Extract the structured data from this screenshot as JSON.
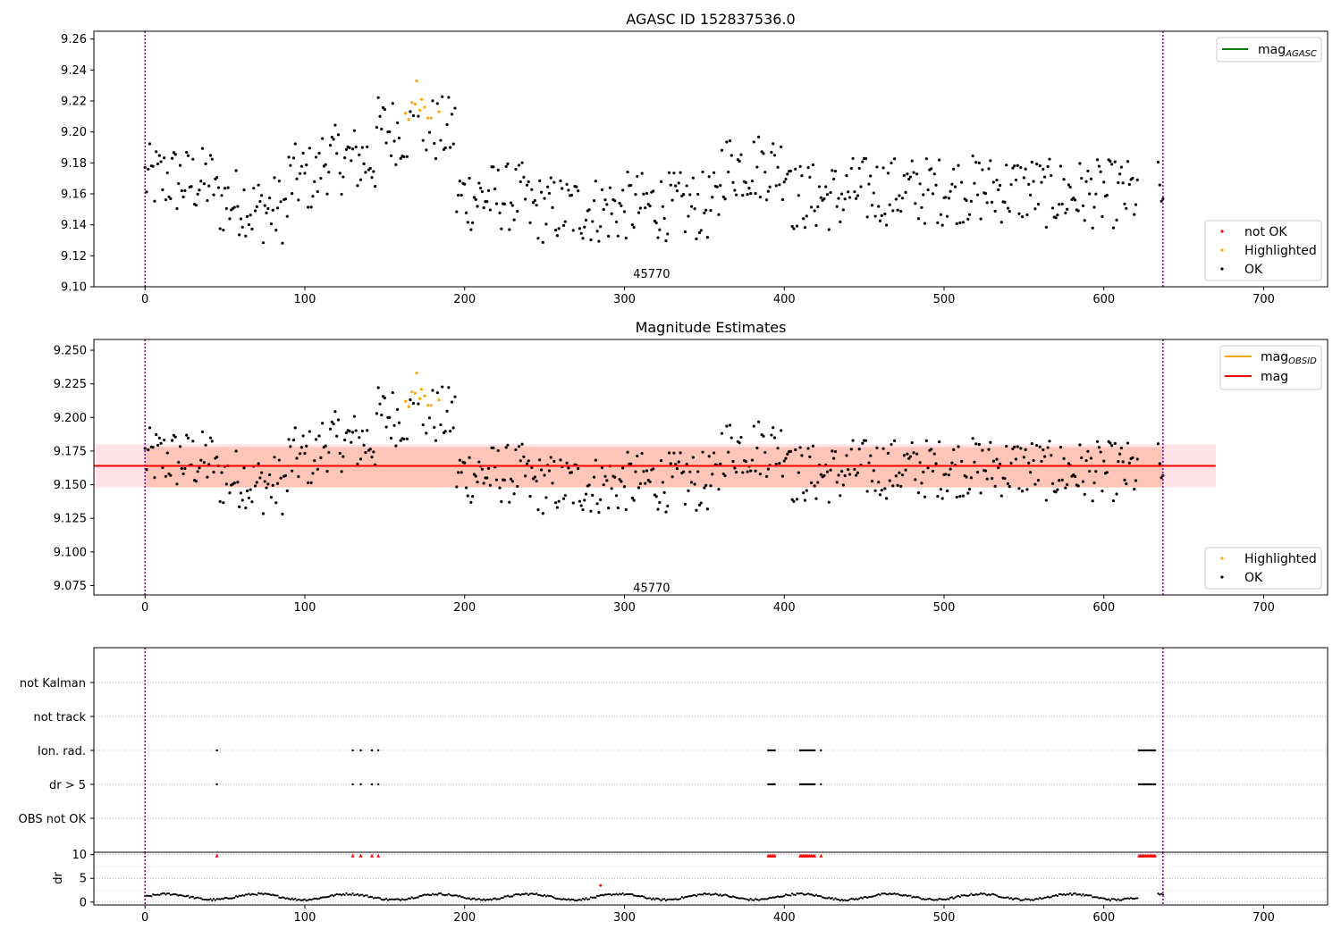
{
  "chart_data": [
    {
      "type": "scatter",
      "title": "AGASC ID 152837536.0",
      "xlim": [
        -32,
        740
      ],
      "ylim": [
        9.1,
        9.265
      ],
      "xticks": [
        0,
        100,
        200,
        300,
        400,
        500,
        600,
        700
      ],
      "yticks": [
        9.1,
        9.12,
        9.14,
        9.16,
        9.18,
        9.2,
        9.22,
        9.24,
        9.26
      ],
      "ytick_decimals": 2,
      "annotation": {
        "text": "45770",
        "x": 317,
        "y": 9.108
      },
      "obs_boundaries": [
        0,
        637
      ],
      "line_legend": [
        {
          "label": "mag",
          "subscript": "AGASC",
          "color": "#008000"
        }
      ],
      "series": [
        {
          "name": "not OK",
          "color": "#ff0000",
          "points": []
        },
        {
          "name": "Highlighted",
          "color": "#ffa500",
          "points": [
            [
              163,
              9.212
            ],
            [
              165,
              9.208
            ],
            [
              167,
              9.219
            ],
            [
              169,
              9.218
            ],
            [
              170,
              9.233
            ],
            [
              172,
              9.214
            ],
            [
              173,
              9.221
            ],
            [
              175,
              9.216
            ],
            [
              177,
              9.209
            ],
            [
              179,
              9.209
            ],
            [
              184,
              9.213
            ]
          ]
        },
        {
          "name": "OK",
          "color": "#000000",
          "points": []
        }
      ],
      "ok_series_model": {
        "x_start": 0,
        "x_end": 637,
        "step": 1,
        "description": "OK magnitude estimates per observation index",
        "center": 9.165
      }
    },
    {
      "type": "scatter",
      "title": "Magnitude Estimates",
      "xlim": [
        -32,
        740
      ],
      "ylim": [
        9.068,
        9.258
      ],
      "xticks": [
        0,
        100,
        200,
        300,
        400,
        500,
        600,
        700
      ],
      "yticks": [
        9.075,
        9.1,
        9.125,
        9.15,
        9.175,
        9.2,
        9.225,
        9.25
      ],
      "ytick_decimals": 3,
      "annotation": {
        "text": "45770",
        "x": 317,
        "y": 9.073
      },
      "obs_boundaries": [
        0,
        637
      ],
      "mag_obsid": 9.164,
      "mag": 9.164,
      "band_outer": [
        9.148,
        9.18
      ],
      "band_inner": [
        9.148,
        9.178
      ],
      "line_legend": [
        {
          "label": "mag",
          "subscript": "OBSID",
          "color": "#ffa500"
        },
        {
          "label": "mag",
          "subscript": "",
          "color": "#ff0000"
        }
      ],
      "series": [
        {
          "name": "Highlighted",
          "color": "#ffa500"
        },
        {
          "name": "OK",
          "color": "#000000"
        }
      ]
    },
    {
      "type": "scatter",
      "title": "",
      "xlim": [
        -32,
        740
      ],
      "categories": [
        "not Kalman",
        "not track",
        "Ion. rad.",
        "dr > 5",
        "OBS not OK"
      ],
      "obs_boundaries": [
        0,
        637
      ],
      "flag_x": [
        45,
        130,
        135,
        142,
        146,
        390,
        391,
        392,
        393,
        394,
        410,
        411,
        412,
        413,
        414,
        415,
        416,
        417,
        418,
        419,
        423,
        622,
        623,
        624,
        625,
        626,
        627,
        628,
        629,
        630,
        631,
        632
      ],
      "flag_rows": [
        "Ion. rad.",
        "dr > 5"
      ]
    },
    {
      "type": "scatter",
      "title": "",
      "ylabel": "dr",
      "xlim": [
        -32,
        740
      ],
      "ylim": [
        -0.6,
        10.5
      ],
      "xticks": [
        0,
        100,
        200,
        300,
        400,
        500,
        600,
        700
      ],
      "yticks": [
        0,
        5,
        10
      ],
      "obs_boundaries": [
        0,
        637
      ],
      "clipped_x": [
        45,
        130,
        135,
        142,
        146,
        390,
        391,
        392,
        393,
        394,
        410,
        411,
        412,
        413,
        414,
        415,
        416,
        417,
        418,
        419,
        423,
        622,
        623,
        624,
        625,
        626,
        627,
        628,
        629,
        630,
        631,
        632
      ],
      "outlier": [
        285,
        3.5
      ]
    }
  ]
}
